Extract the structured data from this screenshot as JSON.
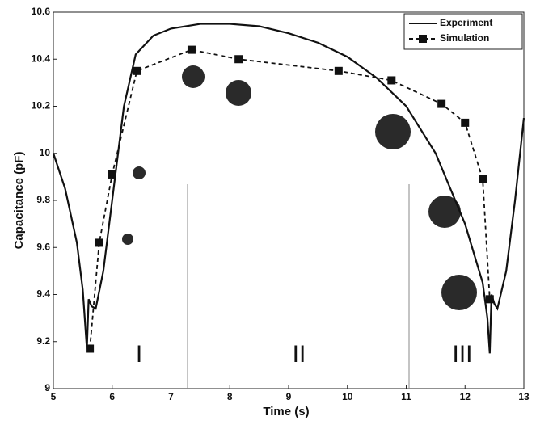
{
  "chart_data": {
    "type": "line",
    "xlabel": "Time (s)",
    "ylabel": "Capacitance (pF)",
    "xlim": [
      5,
      13
    ],
    "xticks": [
      5,
      6,
      7,
      8,
      9,
      10,
      11,
      12,
      13
    ],
    "ylim": [
      9,
      10.6
    ],
    "yticks": [
      9,
      9.2,
      9.4,
      9.6,
      9.8,
      10,
      10.2,
      10.4,
      10.6
    ],
    "legend": "upper right",
    "annotations": [
      "I",
      "II",
      "III"
    ],
    "series": [
      {
        "name": "Experiment",
        "color": "#111111",
        "style": "solid",
        "marker": "none",
        "x": [
          5,
          5.2,
          5.4,
          5.5,
          5.57,
          5.6,
          5.65,
          5.72,
          5.85,
          6.0,
          6.2,
          6.4,
          6.7,
          7.0,
          7.5,
          8.0,
          8.5,
          9.0,
          9.5,
          10.0,
          10.5,
          11.0,
          11.5,
          12.0,
          12.3,
          12.38,
          12.42,
          12.45,
          12.5,
          12.55,
          12.7,
          12.85,
          13.0
        ],
        "values": [
          10.0,
          9.85,
          9.62,
          9.42,
          9.17,
          9.38,
          9.35,
          9.34,
          9.5,
          9.8,
          10.2,
          10.42,
          10.5,
          10.53,
          10.55,
          10.55,
          10.54,
          10.51,
          10.47,
          10.41,
          10.32,
          10.2,
          10.0,
          9.7,
          9.45,
          9.3,
          9.15,
          9.4,
          9.36,
          9.34,
          9.5,
          9.8,
          10.15
        ]
      },
      {
        "name": "Simulation",
        "color": "#111111",
        "style": "dashed",
        "marker": "square",
        "x": [
          5.62,
          5.78,
          6.0,
          6.42,
          7.35,
          8.15,
          9.85,
          10.75,
          11.6,
          12.0,
          12.3,
          12.42
        ],
        "values": [
          9.17,
          9.62,
          9.91,
          10.35,
          10.44,
          10.4,
          10.35,
          10.31,
          10.21,
          10.13,
          9.89,
          9.38
        ]
      }
    ]
  }
}
